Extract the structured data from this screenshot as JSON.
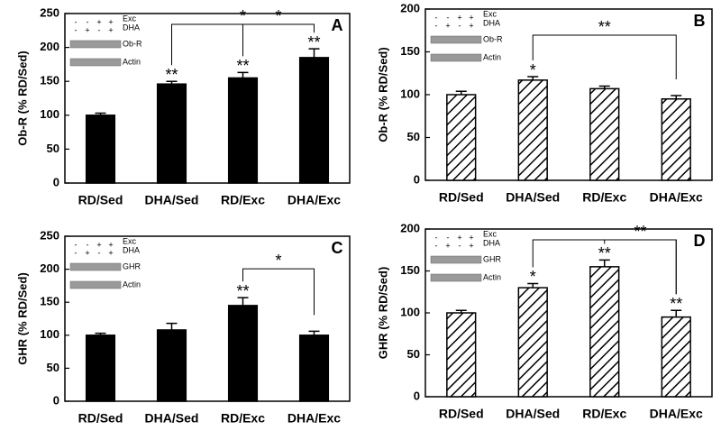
{
  "chart_data": [
    {
      "type": "bar",
      "panel_label": "A",
      "y_label": "Ob-R  (% RD/Sed)",
      "categories": [
        "RD/Sed",
        "DHA/Sed",
        "RD/Exc",
        "DHA/Exc"
      ],
      "values": [
        100,
        146,
        155,
        185
      ],
      "errors": [
        3,
        4,
        8,
        13
      ],
      "color": "#000000",
      "hatch": false,
      "stars": [
        null,
        "**",
        "**",
        "**"
      ],
      "brackets": [
        {
          "from": 1,
          "to": 3,
          "label": "*"
        },
        {
          "from": 2,
          "to": 3,
          "label": "*"
        }
      ],
      "ylim": [
        0,
        250
      ],
      "yticks": [
        0,
        50,
        100,
        150,
        200,
        250
      ],
      "inset": {
        "rows": [
          {
            "label": "Exc",
            "signs": [
              "-",
              "-",
              "+",
              "+"
            ]
          },
          {
            "label": "DHA",
            "signs": [
              "-",
              "+",
              "-",
              "+"
            ]
          }
        ],
        "bands": [
          "Ob-R",
          "Actin"
        ]
      }
    },
    {
      "type": "bar",
      "panel_label": "B",
      "y_label": "Ob-R  (% RD/Sed)",
      "categories": [
        "RD/Sed",
        "DHA/Sed",
        "RD/Exc",
        "DHA/Exc"
      ],
      "values": [
        100,
        117,
        107,
        95
      ],
      "errors": [
        4,
        4,
        3,
        4
      ],
      "color": "#000000",
      "hatch": true,
      "stars": [
        null,
        "*",
        null,
        null
      ],
      "brackets": [
        {
          "from": 1,
          "to": 3,
          "label": "**"
        }
      ],
      "ylim": [
        0,
        200
      ],
      "yticks": [
        0,
        50,
        100,
        150,
        200
      ],
      "inset": {
        "rows": [
          {
            "label": "Exc",
            "signs": [
              "-",
              "-",
              "+",
              "+"
            ]
          },
          {
            "label": "DHA",
            "signs": [
              "-",
              "+",
              "-",
              "+"
            ]
          }
        ],
        "bands": [
          "Ob-R",
          "Actin"
        ]
      }
    },
    {
      "type": "bar",
      "panel_label": "C",
      "y_label": "GHR  (% RD/Sed)",
      "categories": [
        "RD/Sed",
        "DHA/Sed",
        "RD/Exc",
        "DHA/Exc"
      ],
      "values": [
        100,
        108,
        145,
        100
      ],
      "errors": [
        3,
        10,
        12,
        6
      ],
      "color": "#000000",
      "hatch": false,
      "stars": [
        null,
        null,
        "**",
        null
      ],
      "brackets": [
        {
          "from": 2,
          "to": 3,
          "label": "*"
        }
      ],
      "ylim": [
        0,
        250
      ],
      "yticks": [
        0,
        50,
        100,
        150,
        200,
        250
      ],
      "inset": {
        "rows": [
          {
            "label": "Exc",
            "signs": [
              "-",
              "-",
              "+",
              "+"
            ]
          },
          {
            "label": "DHA",
            "signs": [
              "-",
              "+",
              "-",
              "+"
            ]
          }
        ],
        "bands": [
          "GHR",
          "Actin"
        ]
      }
    },
    {
      "type": "bar",
      "panel_label": "D",
      "y_label": "GHR  (% RD/Sed)",
      "categories": [
        "RD/Sed",
        "DHA/Sed",
        "RD/Exc",
        "DHA/Exc"
      ],
      "values": [
        100,
        130,
        155,
        95
      ],
      "errors": [
        3,
        5,
        8,
        8
      ],
      "color": "#000000",
      "hatch": true,
      "stars": [
        null,
        "*",
        "**",
        "**"
      ],
      "brackets": [
        {
          "from": 1,
          "to": 3,
          "label": null
        },
        {
          "from": 2,
          "to": 3,
          "label": "**"
        }
      ],
      "ylim": [
        0,
        200
      ],
      "yticks": [
        0,
        50,
        100,
        150,
        200
      ],
      "inset": {
        "rows": [
          {
            "label": "Exc",
            "signs": [
              "-",
              "-",
              "+",
              "+"
            ]
          },
          {
            "label": "DHA",
            "signs": [
              "-",
              "+",
              "-",
              "+"
            ]
          }
        ],
        "bands": [
          "GHR",
          "Actin"
        ]
      }
    }
  ]
}
